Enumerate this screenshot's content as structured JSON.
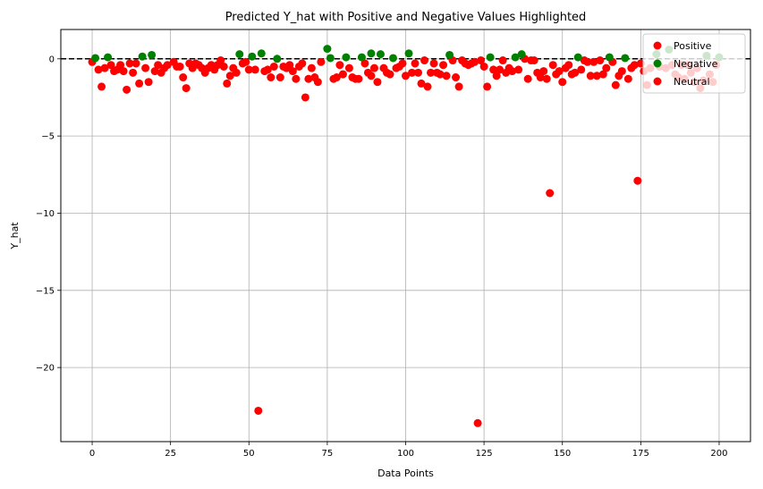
{
  "chart_data": {
    "type": "scatter",
    "title": "Predicted Y_hat with Positive and Negative Values Highlighted",
    "xlabel": "Data Points",
    "ylabel": "Y_hat",
    "xlim": [
      -10,
      210
    ],
    "ylim": [
      -24.8,
      1.9
    ],
    "xticks": [
      0,
      25,
      50,
      75,
      100,
      125,
      150,
      175,
      200
    ],
    "yticks": [
      0,
      -5,
      -10,
      -15,
      -20
    ],
    "ytick_labels": [
      "0",
      "−5",
      "−10",
      "−15",
      "−20"
    ],
    "grid": true,
    "legend_position": "top-right",
    "reference_line": {
      "y": 0,
      "style": "dashed",
      "color": "#000000"
    },
    "colors": {
      "Positive": "#ff0000",
      "Negative": "#008000",
      "Neutral": "#ff0000"
    },
    "series": [
      {
        "name": "Positive",
        "color": "#ff0000",
        "points": [
          [
            0,
            -0.2
          ],
          [
            2,
            -0.7
          ],
          [
            3,
            -1.8
          ],
          [
            4,
            -0.6
          ],
          [
            6,
            -0.4
          ],
          [
            7,
            -0.8
          ],
          [
            8,
            -0.7
          ],
          [
            9,
            -0.4
          ],
          [
            10,
            -0.8
          ],
          [
            11,
            -2.0
          ],
          [
            12,
            -0.3
          ],
          [
            13,
            -0.9
          ],
          [
            14,
            -0.3
          ],
          [
            15,
            -1.6
          ],
          [
            17,
            -0.6
          ],
          [
            18,
            -1.5
          ],
          [
            20,
            -0.8
          ],
          [
            21,
            -0.4
          ],
          [
            22,
            -0.9
          ],
          [
            23,
            -0.6
          ],
          [
            24,
            -0.4
          ],
          [
            26,
            -0.2
          ],
          [
            27,
            -0.5
          ],
          [
            28,
            -0.5
          ],
          [
            29,
            -1.2
          ],
          [
            30,
            -1.9
          ],
          [
            31,
            -0.3
          ],
          [
            32,
            -0.6
          ],
          [
            33,
            -0.3
          ],
          [
            34,
            -0.4
          ],
          [
            35,
            -0.6
          ],
          [
            36,
            -0.9
          ],
          [
            37,
            -0.6
          ],
          [
            38,
            -0.4
          ],
          [
            39,
            -0.7
          ],
          [
            40,
            -0.4
          ],
          [
            41,
            -0.1
          ],
          [
            42,
            -0.5
          ],
          [
            43,
            -1.6
          ],
          [
            44,
            -1.1
          ],
          [
            45,
            -0.6
          ],
          [
            46,
            -0.9
          ],
          [
            48,
            -0.3
          ],
          [
            49,
            -0.2
          ],
          [
            50,
            -0.7
          ],
          [
            52,
            -0.7
          ],
          [
            53,
            -22.8
          ],
          [
            55,
            -0.8
          ],
          [
            56,
            -0.7
          ],
          [
            57,
            -1.2
          ],
          [
            58,
            -0.5
          ],
          [
            60,
            -1.2
          ],
          [
            61,
            -0.5
          ],
          [
            62,
            -0.6
          ],
          [
            63,
            -0.4
          ],
          [
            64,
            -0.8
          ],
          [
            65,
            -1.3
          ],
          [
            66,
            -0.5
          ],
          [
            67,
            -0.3
          ],
          [
            68,
            -2.5
          ],
          [
            69,
            -1.3
          ],
          [
            70,
            -0.6
          ],
          [
            71,
            -1.2
          ],
          [
            72,
            -1.5
          ],
          [
            73,
            -0.2
          ],
          [
            77,
            -1.3
          ],
          [
            78,
            -1.2
          ],
          [
            79,
            -0.4
          ],
          [
            80,
            -1.0
          ],
          [
            82,
            -0.6
          ],
          [
            83,
            -1.2
          ],
          [
            84,
            -1.3
          ],
          [
            85,
            -1.3
          ],
          [
            87,
            -0.3
          ],
          [
            88,
            -0.9
          ],
          [
            89,
            -1.1
          ],
          [
            90,
            -0.6
          ],
          [
            91,
            -1.5
          ],
          [
            93,
            -0.6
          ],
          [
            94,
            -0.9
          ],
          [
            95,
            -1.0
          ],
          [
            97,
            -0.6
          ],
          [
            98,
            -0.5
          ],
          [
            99,
            -0.3
          ],
          [
            100,
            -1.1
          ],
          [
            102,
            -0.9
          ],
          [
            103,
            -0.3
          ],
          [
            104,
            -0.9
          ],
          [
            105,
            -1.6
          ],
          [
            106,
            -0.1
          ],
          [
            107,
            -1.8
          ],
          [
            108,
            -0.9
          ],
          [
            109,
            -0.3
          ],
          [
            110,
            -0.9
          ],
          [
            111,
            -1.0
          ],
          [
            112,
            -0.4
          ],
          [
            113,
            -1.1
          ],
          [
            115,
            -0.1
          ],
          [
            116,
            -1.2
          ],
          [
            117,
            -1.8
          ],
          [
            118,
            -0.1
          ],
          [
            119,
            -0.3
          ],
          [
            120,
            -0.4
          ],
          [
            121,
            -0.3
          ],
          [
            122,
            -0.2
          ],
          [
            123,
            -23.6
          ],
          [
            124,
            -0.1
          ],
          [
            125,
            -0.5
          ],
          [
            126,
            -1.8
          ],
          [
            128,
            -0.7
          ],
          [
            129,
            -1.1
          ],
          [
            130,
            -0.7
          ],
          [
            131,
            -0.1
          ],
          [
            132,
            -0.9
          ],
          [
            133,
            -0.6
          ],
          [
            134,
            -0.8
          ],
          [
            136,
            -0.7
          ],
          [
            138,
            0.0
          ],
          [
            139,
            -1.3
          ],
          [
            140,
            -0.1
          ],
          [
            141,
            -0.1
          ],
          [
            142,
            -0.9
          ],
          [
            143,
            -1.2
          ],
          [
            144,
            -0.8
          ],
          [
            145,
            -1.3
          ],
          [
            146,
            -8.7
          ],
          [
            147,
            -0.4
          ],
          [
            148,
            -1.0
          ],
          [
            149,
            -0.8
          ],
          [
            150,
            -1.5
          ],
          [
            151,
            -0.6
          ],
          [
            152,
            -0.4
          ],
          [
            153,
            -1.0
          ],
          [
            154,
            -0.9
          ],
          [
            156,
            -0.7
          ],
          [
            157,
            -0.1
          ],
          [
            158,
            -0.2
          ],
          [
            159,
            -1.1
          ],
          [
            160,
            -0.2
          ],
          [
            161,
            -1.1
          ],
          [
            162,
            -0.1
          ],
          [
            163,
            -1.0
          ],
          [
            164,
            -0.6
          ],
          [
            166,
            -0.2
          ],
          [
            167,
            -1.7
          ],
          [
            168,
            -1.1
          ],
          [
            169,
            -0.8
          ],
          [
            171,
            -1.3
          ],
          [
            172,
            -0.6
          ],
          [
            173,
            -0.4
          ],
          [
            174,
            -7.9
          ],
          [
            175,
            -0.3
          ],
          [
            176,
            -0.8
          ],
          [
            177,
            -1.7
          ],
          [
            178,
            -0.6
          ],
          [
            181,
            -0.5
          ],
          [
            183,
            -0.6
          ],
          [
            185,
            -0.4
          ],
          [
            186,
            -1.0
          ],
          [
            187,
            -1.2
          ],
          [
            188,
            -0.4
          ],
          [
            189,
            -1.3
          ],
          [
            190,
            -0.4
          ],
          [
            191,
            -0.9
          ],
          [
            192,
            -1.5
          ],
          [
            193,
            -0.6
          ],
          [
            194,
            -1.9
          ],
          [
            195,
            -1.4
          ],
          [
            197,
            -1.0
          ],
          [
            198,
            -1.5
          ],
          [
            199,
            -0.4
          ]
        ]
      },
      {
        "name": "Negative",
        "color": "#008000",
        "points": [
          [
            1,
            0.05
          ],
          [
            5,
            0.1
          ],
          [
            16,
            0.15
          ],
          [
            19,
            0.25
          ],
          [
            47,
            0.3
          ],
          [
            51,
            0.15
          ],
          [
            54,
            0.35
          ],
          [
            59,
            0.0
          ],
          [
            75,
            0.65
          ],
          [
            76,
            0.05
          ],
          [
            81,
            0.1
          ],
          [
            86,
            0.1
          ],
          [
            89,
            0.35
          ],
          [
            92,
            0.3
          ],
          [
            96,
            0.05
          ],
          [
            101,
            0.35
          ],
          [
            114,
            0.25
          ],
          [
            127,
            0.1
          ],
          [
            135,
            0.1
          ],
          [
            137,
            0.3
          ],
          [
            155,
            0.1
          ],
          [
            165,
            0.1
          ],
          [
            170,
            0.05
          ],
          [
            180,
            0.3
          ],
          [
            184,
            0.6
          ],
          [
            196,
            0.2
          ],
          [
            200,
            0.1
          ]
        ]
      }
    ],
    "legend": [
      {
        "label": "Positive",
        "color": "#ff0000"
      },
      {
        "label": "Negative",
        "color": "#008000"
      },
      {
        "label": "Neutral",
        "color": "#ff0000"
      }
    ]
  }
}
